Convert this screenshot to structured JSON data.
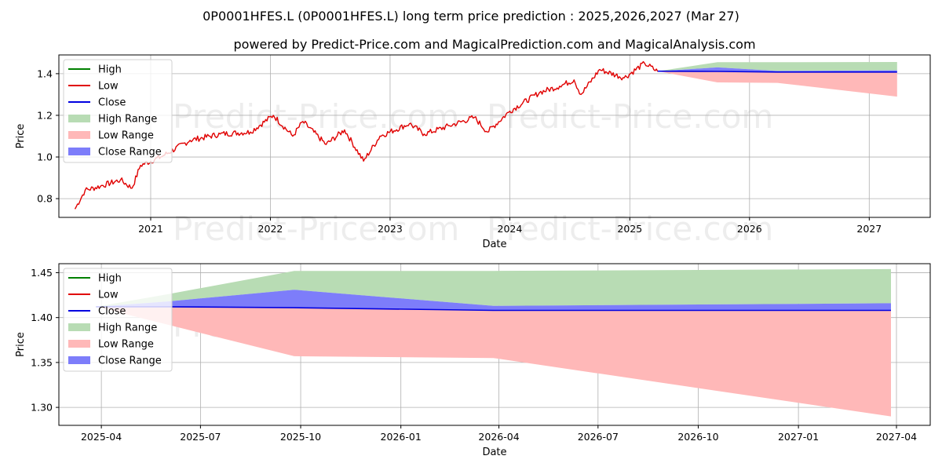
{
  "header": {
    "title": "0P0001HFES.L (0P0001HFES.L) long term price prediction : 2025,2026,2027 (Mar 27)",
    "subtitle": "powered by Predict-Price.com and MagicalPrediction.com and MagicalAnalysis.com"
  },
  "watermark": "Predict-Price.com",
  "colors": {
    "high": "#008000",
    "low": "#e00000",
    "close": "#0000e0",
    "high_range": "#b8dcb4",
    "low_range": "#ffb8b8",
    "close_range": "#7d7dfa"
  },
  "chart_data": [
    {
      "type": "line",
      "xlabel": "Date",
      "ylabel": "Price",
      "grid": true,
      "legend_position": "top-left",
      "legend": [
        "High",
        "Low",
        "Close",
        "High Range",
        "Low Range",
        "Close Range"
      ],
      "x_ticks": [
        "2021",
        "2022",
        "2023",
        "2024",
        "2025",
        "2026",
        "2027"
      ],
      "y_ticks": [
        "0.8",
        "1.0",
        "1.2",
        "1.4"
      ],
      "ylim": [
        0.71,
        1.49
      ],
      "history": {
        "name": "Low",
        "x": [
          "2020-05-15",
          "2020-06-15",
          "2020-08-01",
          "2020-10-01",
          "2020-11-05",
          "2020-12-01",
          "2021-02-01",
          "2021-05-01",
          "2021-08-01",
          "2021-11-01",
          "2022-01-10",
          "2022-03-10",
          "2022-04-10",
          "2022-06-20",
          "2022-08-15",
          "2022-10-12",
          "2022-12-01",
          "2023-03-01",
          "2023-04-15",
          "2023-07-01",
          "2023-09-15",
          "2023-10-25",
          "2024-01-01",
          "2024-04-01",
          "2024-06-01",
          "2024-07-15",
          "2024-08-05",
          "2024-10-01",
          "2024-12-15",
          "2025-02-15",
          "2025-03-27"
        ],
        "y": [
          0.75,
          0.84,
          0.86,
          0.89,
          0.85,
          0.96,
          1.0,
          1.08,
          1.11,
          1.12,
          1.2,
          1.1,
          1.17,
          1.06,
          1.13,
          0.98,
          1.1,
          1.16,
          1.11,
          1.15,
          1.19,
          1.12,
          1.22,
          1.31,
          1.34,
          1.37,
          1.3,
          1.42,
          1.38,
          1.45,
          1.41
        ]
      },
      "forecast": {
        "x": [
          "2025-03-27",
          "2025-09-25",
          "2026-03-27",
          "2027-03-27"
        ],
        "high_range": [
          1.412,
          1.455,
          1.455,
          1.456
        ],
        "low_range": [
          1.412,
          1.358,
          1.356,
          1.29
        ],
        "close_range_upper": [
          1.412,
          1.43,
          1.413,
          1.416
        ],
        "close_range_lower": [
          1.412,
          1.41,
          1.408,
          1.408
        ],
        "close": [
          1.412,
          1.411,
          1.408,
          1.408
        ]
      }
    },
    {
      "type": "line",
      "xlabel": "Date",
      "ylabel": "Price",
      "grid": true,
      "legend_position": "top-left",
      "legend": [
        "High",
        "Low",
        "Close",
        "High Range",
        "Low Range",
        "Close Range"
      ],
      "x_ticks": [
        "2025-04",
        "2025-07",
        "2025-10",
        "2026-01",
        "2026-04",
        "2026-07",
        "2026-10",
        "2027-01",
        "2027-04"
      ],
      "y_ticks": [
        "1.30",
        "1.35",
        "1.40",
        "1.45"
      ],
      "ylim": [
        1.28,
        1.46
      ],
      "forecast": {
        "x": [
          "2025-03-27",
          "2025-06-01",
          "2025-09-25",
          "2026-03-27",
          "2027-03-27"
        ],
        "high_range": [
          1.412,
          1.426,
          1.452,
          1.452,
          1.454
        ],
        "low_range": [
          1.412,
          1.392,
          1.357,
          1.355,
          1.29
        ],
        "close_range_upper": [
          1.412,
          1.418,
          1.431,
          1.413,
          1.416
        ],
        "close_range_lower": [
          1.412,
          1.412,
          1.411,
          1.408,
          1.408
        ],
        "close": [
          1.412,
          1.412,
          1.411,
          1.408,
          1.408
        ]
      }
    }
  ]
}
